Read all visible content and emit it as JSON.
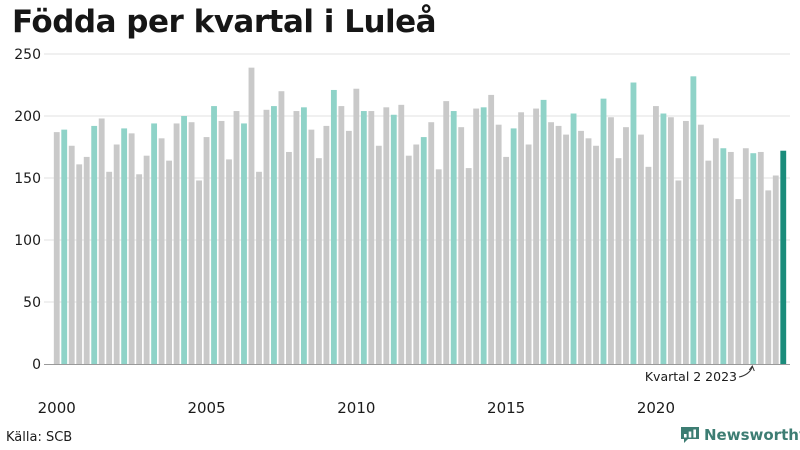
{
  "title": "Födda per kvartal i Luleå",
  "source": "Källa: SCB",
  "brand": "Newsworthy",
  "colors": {
    "gray": "#c9c9c9",
    "q2": "#8fd3c8",
    "latest": "#1a8c7b",
    "brand": "#3d7d73"
  },
  "chart_data": {
    "type": "bar",
    "title": "Födda per kvartal i Luleå",
    "xlabel": "",
    "ylabel": "",
    "ylim": [
      0,
      250
    ],
    "yticks": [
      0,
      50,
      100,
      150,
      200,
      250
    ],
    "xtick_labels": [
      "2000",
      "2005",
      "2010",
      "2015",
      "2020"
    ],
    "highlight_quarter": 2,
    "start_year": 2000,
    "values": [
      187,
      189,
      176,
      161,
      167,
      192,
      198,
      155,
      177,
      190,
      186,
      153,
      168,
      194,
      182,
      164,
      194,
      200,
      195,
      148,
      183,
      208,
      196,
      165,
      204,
      194,
      239,
      155,
      205,
      208,
      220,
      171,
      204,
      207,
      189,
      166,
      192,
      221,
      208,
      188,
      222,
      204,
      204,
      176,
      207,
      201,
      209,
      168,
      177,
      183,
      195,
      157,
      212,
      204,
      191,
      158,
      206,
      207,
      217,
      193,
      167,
      190,
      203,
      177,
      206,
      213,
      195,
      192,
      185,
      202,
      188,
      182,
      176,
      214,
      199,
      166,
      191,
      227,
      185,
      159,
      208,
      202,
      199,
      148,
      196,
      232,
      193,
      164,
      182,
      174,
      171,
      133,
      174,
      170,
      171,
      140,
      152,
      172
    ],
    "annotation": "Kvartal 2 2023"
  }
}
